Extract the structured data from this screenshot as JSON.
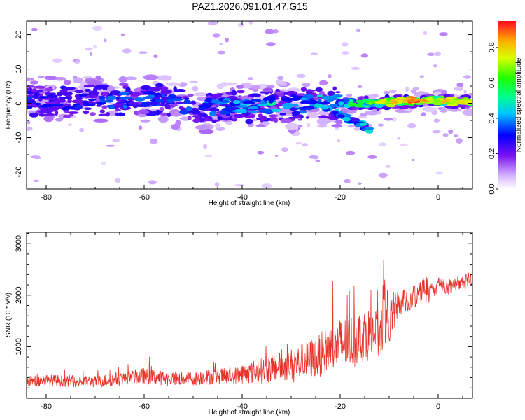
{
  "figure": {
    "title": "PAZ1.2026.091.01.47.G15"
  },
  "colors": {
    "snr_line": "#e8332b",
    "frame": "#000000",
    "background": "#ffffff"
  },
  "chart_data": [
    {
      "type": "heatmap",
      "name": "spectrogram",
      "title": "PAZ1.2026.091.01.47.G15",
      "xlabel": "Height of straight line (km)",
      "ylabel": "Frequency (Hz)",
      "xlim": [
        -84,
        7
      ],
      "ylim": [
        -25,
        24
      ],
      "xticks": [
        -80,
        -60,
        -40,
        -20,
        0
      ],
      "yticks": [
        -20,
        -10,
        0,
        10,
        20
      ],
      "colorbar": {
        "label": "Normalized spectral amplitude",
        "range": [
          0,
          0.95
        ],
        "ticks": [
          0.0,
          0.2,
          0.4,
          0.6,
          0.8
        ],
        "tick_labels": [
          "0.0",
          "0.2",
          "0.4",
          "0.6",
          "0.8"
        ],
        "colormap": "white-violet-blue-cyan-green-yellow-red"
      },
      "ridge": [
        {
          "x": -84,
          "f": 1.0,
          "a": 0.35
        },
        {
          "x": -78,
          "f": 0.5,
          "a": 0.32
        },
        {
          "x": -72,
          "f": 0.5,
          "a": 0.35
        },
        {
          "x": -66,
          "f": 1.0,
          "a": 0.38
        },
        {
          "x": -60,
          "f": 1.2,
          "a": 0.4
        },
        {
          "x": -55,
          "f": 0.5,
          "a": 0.36
        },
        {
          "x": -50,
          "f": -1.5,
          "a": 0.38
        },
        {
          "x": -45,
          "f": -1.0,
          "a": 0.4
        },
        {
          "x": -40,
          "f": -1.0,
          "a": 0.45
        },
        {
          "x": -35,
          "f": -0.5,
          "a": 0.55
        },
        {
          "x": -30,
          "f": -1.0,
          "a": 0.45
        },
        {
          "x": -25,
          "f": 0.5,
          "a": 0.5
        },
        {
          "x": -20,
          "f": 0.0,
          "a": 0.55
        },
        {
          "x": -15,
          "f": 0.0,
          "a": 0.65
        },
        {
          "x": -10,
          "f": 0.3,
          "a": 0.82
        },
        {
          "x": -5,
          "f": 0.8,
          "a": 0.9
        },
        {
          "x": 0,
          "f": 0.8,
          "a": 0.8
        },
        {
          "x": 5,
          "f": 0.3,
          "a": 0.85
        },
        {
          "x": 7,
          "f": 0.2,
          "a": 0.85
        }
      ]
    },
    {
      "type": "line",
      "name": "snr",
      "xlabel": "Height of straight line (km)",
      "ylabel": "SNR (10 * v/v)",
      "xlim": [
        -84,
        7
      ],
      "ylim": [
        0,
        3220
      ],
      "xticks": [
        -80,
        -60,
        -40,
        -20,
        0
      ],
      "yticks": [
        1000,
        2000,
        3000
      ],
      "series": [
        {
          "name": "SNR",
          "color": "#e8332b",
          "envelope": {
            "x": [
              -84,
              -80,
              -75,
              -70,
              -65,
              -60,
              -55,
              -50,
              -45,
              -42,
              -40,
              -35,
              -30,
              -28,
              -25,
              -22,
              -20,
              -18,
              -16,
              -14,
              -12,
              -11,
              -10,
              -8,
              -6,
              -4,
              -2,
              0,
              2,
              4,
              6,
              7
            ],
            "mean": [
              330,
              350,
              330,
              320,
              380,
              430,
              380,
              390,
              430,
              420,
              480,
              550,
              650,
              700,
              800,
              950,
              1050,
              1100,
              1200,
              1250,
              1250,
              1550,
              1500,
              1850,
              1900,
              2000,
              2050,
              2150,
              2150,
              2200,
              2350,
              2250
            ],
            "spread": [
              130,
              140,
              140,
              140,
              170,
              200,
              170,
              180,
              200,
              200,
              250,
              320,
              400,
              450,
              500,
              600,
              650,
              650,
              650,
              650,
              600,
              800,
              700,
              300,
              280,
              230,
              200,
              200,
              170,
              170,
              180,
              180
            ]
          }
        }
      ]
    }
  ]
}
